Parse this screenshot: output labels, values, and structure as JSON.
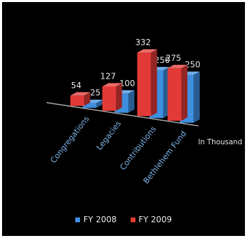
{
  "chart_data": {
    "type": "bar",
    "categories": [
      "Congregations",
      "Legacies",
      "Contributions",
      "Bethlehem Fund"
    ],
    "series": [
      {
        "name": "FY 2008",
        "values": [
          25,
          100,
          250,
          250
        ]
      },
      {
        "name": "FY 2009",
        "values": [
          54,
          127,
          332,
          275
        ]
      }
    ],
    "value_labels": {
      "FY 2008": [
        "25",
        "100",
        "250",
        "250"
      ],
      "FY 2009": [
        "54",
        "127",
        "332",
        "275"
      ]
    },
    "axis_note": "In Thousand",
    "ylim": [
      0,
      340
    ],
    "grid": false,
    "legend_position": "bottom",
    "colors": {
      "FY 2008": "#3f8fe0",
      "FY 2009": "#e23a36",
      "background": "#000000",
      "frame": "#ffffff",
      "text": "#e6e6e6",
      "axis": "#a8a8a8",
      "category_text": "#7fb4ea"
    }
  }
}
